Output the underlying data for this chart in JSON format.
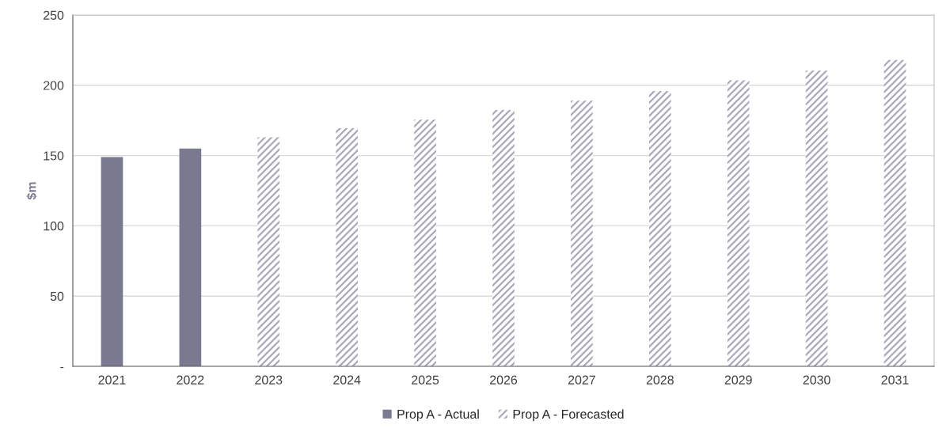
{
  "chart_data": {
    "type": "bar",
    "ylabel": "$m",
    "categories": [
      "2021",
      "2022",
      "2023",
      "2024",
      "2025",
      "2026",
      "2027",
      "2028",
      "2029",
      "2030",
      "2031"
    ],
    "series": [
      {
        "name": "Prop A - Actual",
        "color": "#797990",
        "values": [
          149,
          155,
          null,
          null,
          null,
          null,
          null,
          null,
          null,
          null,
          null
        ]
      },
      {
        "name": "Prop A - Forecasted",
        "color": "#a9a9bb",
        "values": [
          null,
          null,
          163,
          169.5,
          175.5,
          182.5,
          189,
          196,
          203.5,
          210.5,
          218
        ]
      }
    ],
    "ylim": [
      0,
      250
    ],
    "yticks": [
      {
        "value": 0,
        "label": "-"
      },
      50,
      100,
      150,
      200,
      250
    ],
    "grid": "y",
    "legend": "bottom"
  }
}
